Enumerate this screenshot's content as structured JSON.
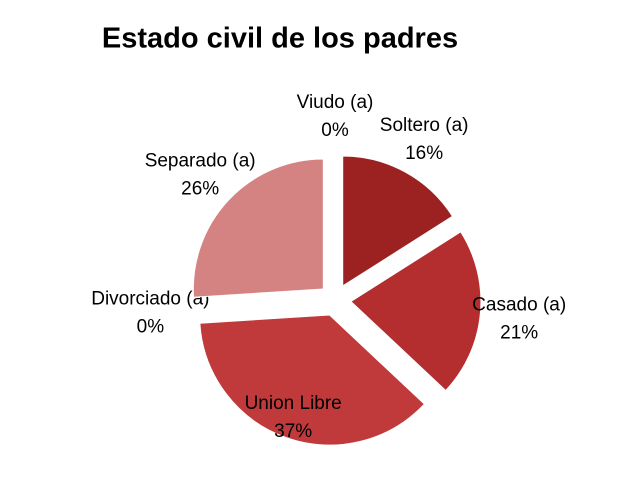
{
  "chart_data": {
    "type": "pie",
    "title": "Estado civil de los padres",
    "categories": [
      "Viudo (a)",
      "Soltero (a)",
      "Casado (a)",
      "Union Libre",
      "Divorciado (a)",
      "Separado (a)"
    ],
    "values": [
      0,
      16,
      21,
      37,
      0,
      26
    ],
    "value_labels": [
      "0%",
      "16%",
      "21%",
      "37%",
      "0%",
      "26%"
    ],
    "colors": [
      "#8f1d1d",
      "#9c2222",
      "#b42d2f",
      "#c0393b",
      "#c86060",
      "#d48282"
    ]
  }
}
